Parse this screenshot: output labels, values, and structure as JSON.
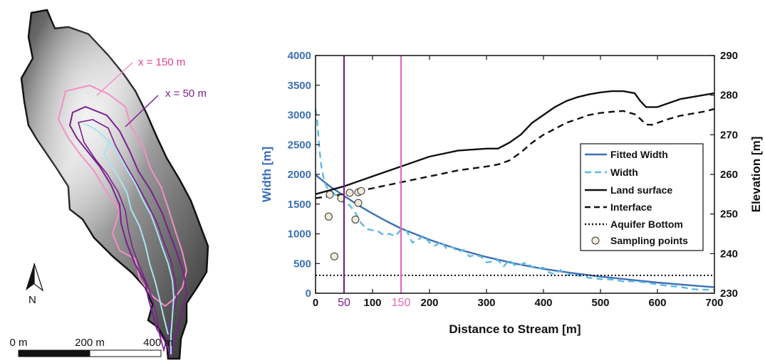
{
  "map": {
    "labels": {
      "x150": "x = 150 m",
      "x50": "x = 50 m",
      "north": "N"
    },
    "scale_bar": {
      "ticks": [
        "0 m",
        "200 m",
        "400 m"
      ]
    },
    "colors": {
      "relief_dark": "#2a2a2a",
      "relief_light": "#e8e8e8",
      "outline": "#111111",
      "contour_150": "#f48fc6",
      "contour_50": "#7a1f8f",
      "stream": "#a8e4f2"
    }
  },
  "chart_data": {
    "type": "line",
    "xlabel": "Distance to Stream [m]",
    "ylabel_left": "Width [m]",
    "ylabel_right": "Elevation [m]",
    "xlim": [
      0,
      700
    ],
    "ylim_left": [
      0,
      4000
    ],
    "ylim_right": [
      230,
      290
    ],
    "x_ticks": [
      "0",
      "100",
      "200",
      "300",
      "400",
      "500",
      "600",
      "700"
    ],
    "y_left_ticks": [
      "0",
      "500",
      "1000",
      "1500",
      "2000",
      "2500",
      "3000",
      "3500",
      "4000"
    ],
    "y_right_ticks": [
      "230",
      "240",
      "250",
      "260",
      "270",
      "280",
      "290"
    ],
    "markers": [
      {
        "x": 50,
        "label": "50",
        "color": "#7a1f8f"
      },
      {
        "x": 150,
        "label": "150",
        "color": "#e667b8"
      }
    ],
    "legend_position": "right",
    "series": [
      {
        "name": "Fitted Width",
        "axis": "left",
        "style": "solid",
        "color": "#3c6fb6",
        "x": [
          0,
          25,
          50,
          75,
          100,
          125,
          150,
          200,
          250,
          300,
          350,
          400,
          450,
          500,
          550,
          600,
          650,
          700
        ],
        "y": [
          1990,
          1800,
          1640,
          1480,
          1340,
          1210,
          1090,
          900,
          740,
          610,
          500,
          410,
          340,
          280,
          230,
          180,
          140,
          100
        ]
      },
      {
        "name": "Width",
        "axis": "left",
        "style": "dashed",
        "color": "#5fb8e6",
        "x": [
          0,
          3,
          6,
          10,
          15,
          20,
          30,
          40,
          50,
          60,
          70,
          80,
          90,
          100,
          110,
          120,
          130,
          140,
          150,
          160,
          170,
          180,
          190,
          200,
          210,
          220,
          230,
          240,
          250,
          260,
          270,
          280,
          290,
          300,
          310,
          320,
          330,
          340,
          350,
          360,
          370,
          380,
          390,
          400,
          410,
          420,
          430,
          440,
          450,
          460,
          470,
          480,
          490,
          500,
          520,
          540,
          560,
          580,
          600,
          620,
          640,
          660,
          680,
          700
        ],
        "y": [
          3100,
          2900,
          2500,
          2150,
          1900,
          1780,
          1700,
          1600,
          1520,
          1480,
          1350,
          1180,
          1080,
          1060,
          1040,
          980,
          1000,
          960,
          1070,
          1050,
          850,
          900,
          970,
          850,
          800,
          870,
          750,
          780,
          700,
          730,
          620,
          640,
          620,
          520,
          530,
          560,
          450,
          560,
          470,
          480,
          520,
          440,
          420,
          430,
          350,
          320,
          390,
          300,
          330,
          300,
          280,
          260,
          250,
          240,
          230,
          200,
          200,
          180,
          150,
          120,
          110,
          70,
          60,
          60
        ]
      },
      {
        "name": "Land surface",
        "axis": "right",
        "style": "solid",
        "color": "#111111",
        "x": [
          0,
          50,
          100,
          150,
          200,
          250,
          300,
          320,
          340,
          360,
          380,
          400,
          420,
          440,
          460,
          480,
          500,
          520,
          540,
          560,
          570,
          580,
          590,
          600,
          620,
          640,
          660,
          680,
          700
        ],
        "y": [
          255,
          257,
          259.5,
          262,
          264.5,
          266,
          266.5,
          266.5,
          268,
          270,
          273,
          275,
          277,
          278.5,
          279.5,
          280.2,
          280.7,
          281,
          281,
          280.5,
          278.5,
          277,
          277,
          277,
          278,
          279,
          279.5,
          280,
          280.5
        ]
      },
      {
        "name": "Interface",
        "axis": "right",
        "style": "dashed",
        "color": "#111111",
        "x": [
          0,
          50,
          100,
          150,
          200,
          250,
          300,
          320,
          340,
          360,
          380,
          400,
          420,
          440,
          460,
          480,
          500,
          520,
          540,
          560,
          570,
          580,
          590,
          600,
          620,
          640,
          660,
          680,
          700
        ],
        "y": [
          254,
          255,
          256.5,
          258,
          259.5,
          261,
          262,
          262.5,
          263.5,
          265.5,
          268,
          270,
          271.5,
          273,
          274,
          275,
          275.5,
          275.8,
          276,
          275.2,
          274,
          272.6,
          272.5,
          273,
          274,
          274.8,
          275.3,
          275.8,
          276.5
        ]
      },
      {
        "name": "Aquifer Bottom",
        "axis": "right",
        "style": "dotted",
        "color": "#111111",
        "x": [
          0,
          700
        ],
        "y": [
          234.5,
          234.5
        ]
      },
      {
        "name": "Sampling points",
        "axis": "left",
        "style": "marker",
        "color": "#f2ead8",
        "x": [
          25,
          23,
          45,
          60,
          75,
          70,
          80,
          75,
          33
        ],
        "y": [
          1660,
          1290,
          1600,
          1690,
          1700,
          1240,
          1720,
          1520,
          620
        ]
      }
    ]
  }
}
